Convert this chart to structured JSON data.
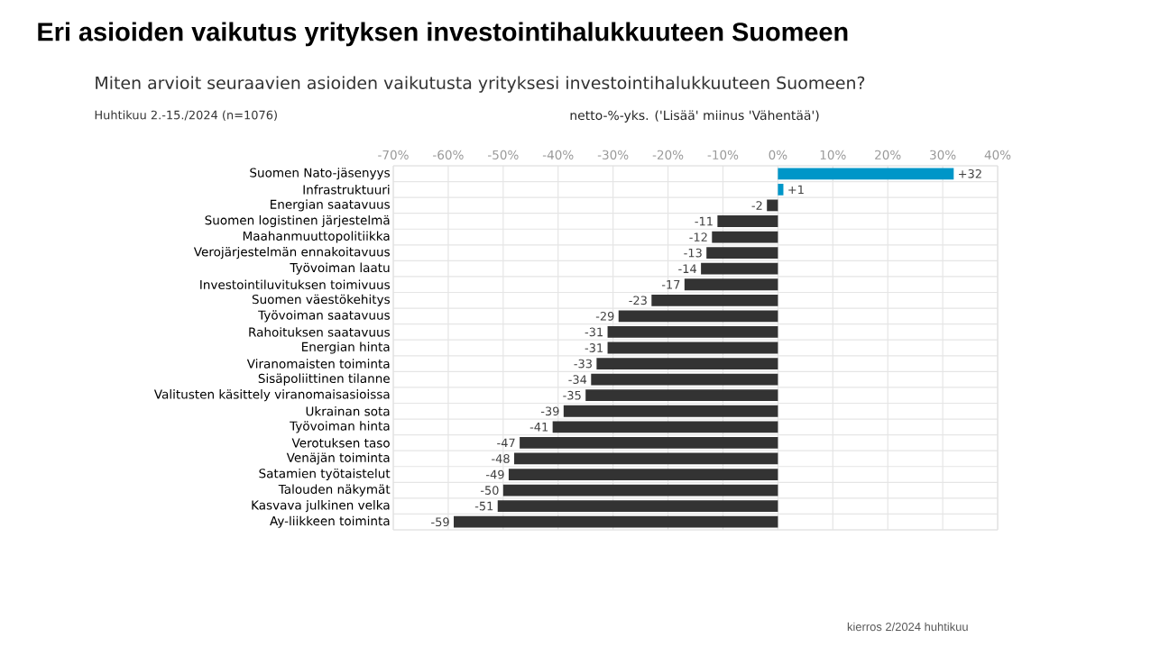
{
  "chart_data": {
    "type": "bar",
    "orientation": "horizontal",
    "title": "Eri asioiden vaikutus yrityksen investointihalukkuuteen Suomeen",
    "subtitle": "Miten arvioit seuraavien asioiden vaikutusta yrityksesi investointihalukkuuteen Suomeen?",
    "xlabel": "netto-%-yks. ('Lisää' miinus 'Vähentää')",
    "annotations": [
      "Huhtikuu 2.-15./2024 (n=1076)",
      "kierros 2/2024 huhtikuu"
    ],
    "categories": [
      "Suomen Nato-jäsenyys",
      "Infrastruktuuri",
      "Energian saatavuus",
      "Suomen logistinen järjestelmä",
      "Maahanmuuttopolitiikka",
      "Verojärjestelmän ennakoitavuus",
      "Työvoiman laatu",
      "Investointiluvituksen toimivuus",
      "Suomen väestökehitys",
      "Työvoiman saatavuus",
      "Rahoituksen saatavuus",
      "Energian hinta",
      "Viranomaisten toiminta",
      "Sisäpoliittinen tilanne",
      "Valitusten käsittely viranomaisasioissa",
      "Ukrainan sota",
      "Työvoiman hinta",
      "Verotuksen taso",
      "Venäjän toiminta",
      "Satamien työtaistelut",
      "Talouden näkymät",
      "Kasvava julkinen velka",
      "Ay-liikkeen toiminta"
    ],
    "values": [
      32,
      1,
      -2,
      -11,
      -12,
      -13,
      -14,
      -17,
      -23,
      -29,
      -31,
      -31,
      -33,
      -34,
      -35,
      -39,
      -41,
      -47,
      -48,
      -49,
      -50,
      -51,
      -59
    ],
    "value_labels": [
      "+32",
      "+1",
      "-2",
      "-11",
      "-12",
      "-13",
      "-14",
      "-17",
      "-23",
      "-29",
      "-31",
      "-31",
      "-33",
      "-34",
      "-35",
      "-39",
      "-41",
      "-47",
      "-48",
      "-49",
      "-50",
      "-51",
      "-59"
    ],
    "colors": [
      "#0096c8",
      "#0096c8",
      "#333333",
      "#333333",
      "#333333",
      "#333333",
      "#333333",
      "#333333",
      "#333333",
      "#333333",
      "#333333",
      "#333333",
      "#333333",
      "#333333",
      "#333333",
      "#333333",
      "#333333",
      "#333333",
      "#333333",
      "#333333",
      "#333333",
      "#333333",
      "#333333"
    ],
    "xlim": [
      -70,
      40
    ],
    "xticks": [
      {
        "value": -70,
        "label": "-70%"
      },
      {
        "value": -60,
        "label": "-60%"
      },
      {
        "value": -50,
        "label": "-50%"
      },
      {
        "value": -40,
        "label": "-40%"
      },
      {
        "value": -30,
        "label": "-30%"
      },
      {
        "value": -20,
        "label": "-20%"
      },
      {
        "value": -10,
        "label": "-10%"
      },
      {
        "value": 0,
        "label": "0%"
      },
      {
        "value": 10,
        "label": "10%"
      },
      {
        "value": 20,
        "label": "20%"
      },
      {
        "value": 30,
        "label": "30%"
      },
      {
        "value": 40,
        "label": "40%"
      }
    ],
    "grid": true
  }
}
